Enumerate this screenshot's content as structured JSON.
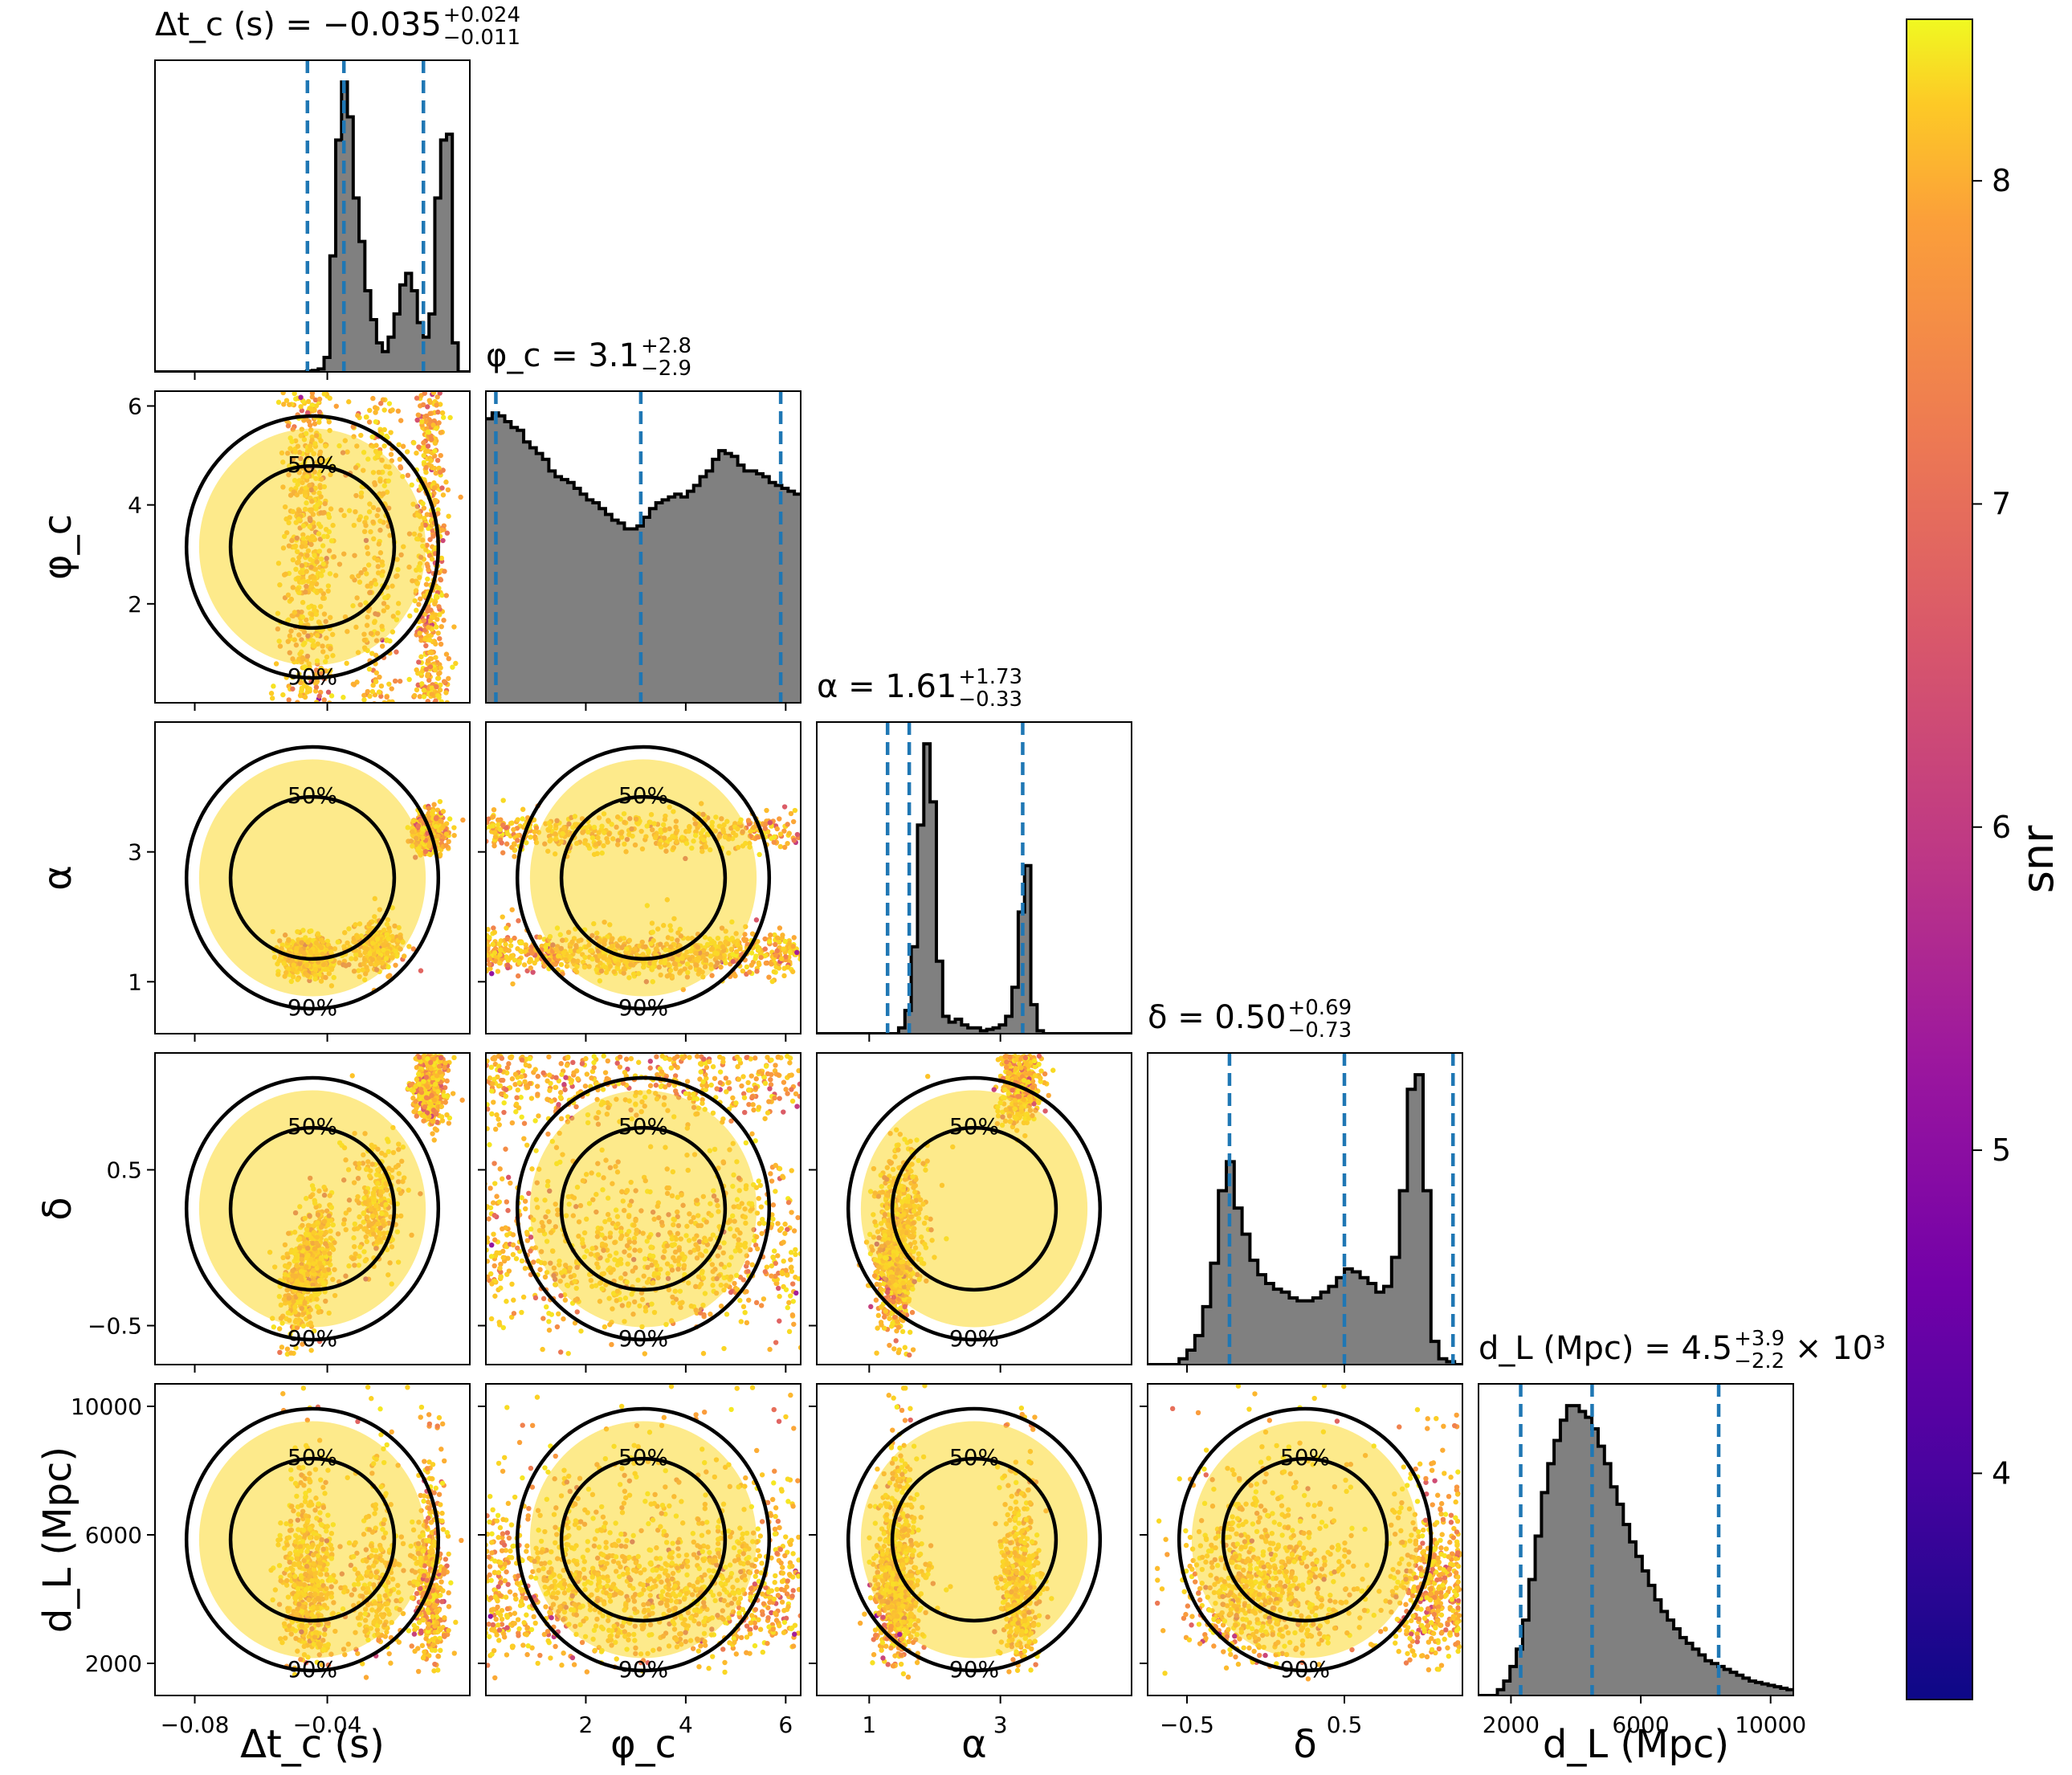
{
  "chart_data": {
    "type": "corner",
    "parameters": [
      {
        "key": "dtc",
        "label": "Δt_c (s)",
        "title_prefix": "Δt_c (s) = ",
        "title_value": "−0.035",
        "title_up": "+0.024",
        "title_down": "−0.011",
        "title_suffix": "",
        "ticks": [
          -0.08,
          -0.04
        ],
        "tick_labels": [
          "−0.08",
          "−0.04"
        ],
        "range": [
          -0.092,
          0.003
        ],
        "quantiles": [
          -0.046,
          -0.035,
          -0.011
        ]
      },
      {
        "key": "phic",
        "label": "φ_c",
        "title_prefix": "φ_c = ",
        "title_value": "3.1",
        "title_up": "+2.8",
        "title_down": "−2.9",
        "title_suffix": "",
        "ticks": [
          2,
          4,
          6
        ],
        "tick_labels": [
          "2",
          "4",
          "6"
        ],
        "range": [
          0.0,
          6.3
        ],
        "quantiles": [
          0.2,
          3.1,
          5.9
        ]
      },
      {
        "key": "alpha",
        "label": "α",
        "title_prefix": "α = ",
        "title_value": "1.61",
        "title_up": "+1.73",
        "title_down": "−0.33",
        "title_suffix": "",
        "ticks": [
          1,
          3
        ],
        "tick_labels": [
          "1",
          "3"
        ],
        "range": [
          0.2,
          5.0
        ],
        "quantiles": [
          1.28,
          1.61,
          3.34
        ]
      },
      {
        "key": "delta",
        "label": "δ",
        "title_prefix": "δ = ",
        "title_value": "0.50",
        "title_up": "+0.69",
        "title_down": "−0.73",
        "title_suffix": "",
        "ticks": [
          -0.5,
          0.5
        ],
        "tick_labels": [
          "−0.5",
          "0.5"
        ],
        "range": [
          -0.75,
          1.25
        ],
        "quantiles": [
          -0.23,
          0.5,
          1.19
        ]
      },
      {
        "key": "dl",
        "label": "d_L (Mpc)",
        "title_prefix": "d_L (Mpc) = ",
        "title_value": "4.5",
        "title_up": "+3.9",
        "title_down": "−2.2",
        "title_suffix": " × 10³",
        "ticks": [
          2000,
          6000,
          10000
        ],
        "tick_labels": [
          "2000",
          "6000",
          "10000"
        ],
        "range": [
          1000,
          10700
        ],
        "quantiles": [
          2300,
          4500,
          8400
        ]
      }
    ],
    "histograms": {
      "dtc": [
        0,
        0,
        0,
        0,
        0,
        0,
        0,
        0,
        0,
        0,
        0,
        0,
        0,
        0,
        0,
        0,
        0,
        0,
        0,
        0,
        0,
        0,
        0,
        0,
        0,
        0,
        0.003,
        0.005,
        0.01,
        0.05,
        0.4,
        0.8,
        1.0,
        0.88,
        0.6,
        0.45,
        0.28,
        0.18,
        0.1,
        0.07,
        0.12,
        0.2,
        0.3,
        0.34,
        0.28,
        0.17,
        0.12,
        0.2,
        0.6,
        0.8,
        0.82,
        0.1,
        0.0,
        0.0
      ],
      "phic": [
        0.98,
        1.0,
        0.99,
        0.97,
        0.95,
        0.94,
        0.9,
        0.88,
        0.86,
        0.84,
        0.8,
        0.78,
        0.77,
        0.76,
        0.74,
        0.72,
        0.7,
        0.69,
        0.67,
        0.65,
        0.63,
        0.62,
        0.6,
        0.6,
        0.61,
        0.64,
        0.67,
        0.69,
        0.7,
        0.71,
        0.72,
        0.71,
        0.73,
        0.75,
        0.78,
        0.8,
        0.84,
        0.87,
        0.86,
        0.85,
        0.82,
        0.8,
        0.8,
        0.79,
        0.78,
        0.76,
        0.75,
        0.74,
        0.73,
        0.72
      ],
      "alpha": [
        0,
        0,
        0,
        0,
        0,
        0,
        0,
        0,
        0,
        0,
        0,
        0,
        0,
        0.02,
        0.08,
        0.3,
        0.72,
        1.0,
        0.8,
        0.25,
        0.06,
        0.04,
        0.05,
        0.03,
        0.02,
        0.02,
        0.01,
        0.015,
        0.02,
        0.03,
        0.06,
        0.16,
        0.42,
        0.58,
        0.1,
        0.01,
        0,
        0,
        0,
        0,
        0,
        0,
        0,
        0,
        0,
        0,
        0,
        0,
        0,
        0
      ],
      "delta": [
        0,
        0,
        0,
        0,
        0.02,
        0.05,
        0.1,
        0.2,
        0.35,
        0.6,
        0.7,
        0.54,
        0.45,
        0.36,
        0.31,
        0.28,
        0.26,
        0.25,
        0.23,
        0.22,
        0.22,
        0.23,
        0.25,
        0.27,
        0.3,
        0.33,
        0.32,
        0.3,
        0.28,
        0.25,
        0.27,
        0.37,
        0.6,
        0.95,
        1.0,
        0.6,
        0.08,
        0.02,
        0.01,
        0
      ],
      "dl": [
        0,
        0,
        0,
        0.02,
        0.05,
        0.1,
        0.16,
        0.26,
        0.4,
        0.55,
        0.7,
        0.8,
        0.88,
        0.95,
        1.0,
        1.0,
        0.98,
        0.96,
        0.92,
        0.86,
        0.8,
        0.72,
        0.66,
        0.59,
        0.53,
        0.48,
        0.43,
        0.38,
        0.33,
        0.29,
        0.26,
        0.23,
        0.2,
        0.18,
        0.16,
        0.14,
        0.12,
        0.11,
        0.1,
        0.09,
        0.08,
        0.07,
        0.06,
        0.05,
        0.045,
        0.04,
        0.035,
        0.03,
        0.025,
        0.02
      ]
    },
    "contour_labels": [
      "50%",
      "90%"
    ],
    "colorbar": {
      "label": "snr",
      "range": [
        3.3,
        8.5
      ],
      "ticks": [
        4,
        5,
        6,
        7,
        8
      ],
      "tick_labels": [
        "4",
        "5",
        "6",
        "7",
        "8"
      ],
      "colormap": "plasma"
    },
    "colors": {
      "histogram_fill": "#808080",
      "quantile_line": "#1f77b4",
      "contour": "#000000"
    }
  }
}
